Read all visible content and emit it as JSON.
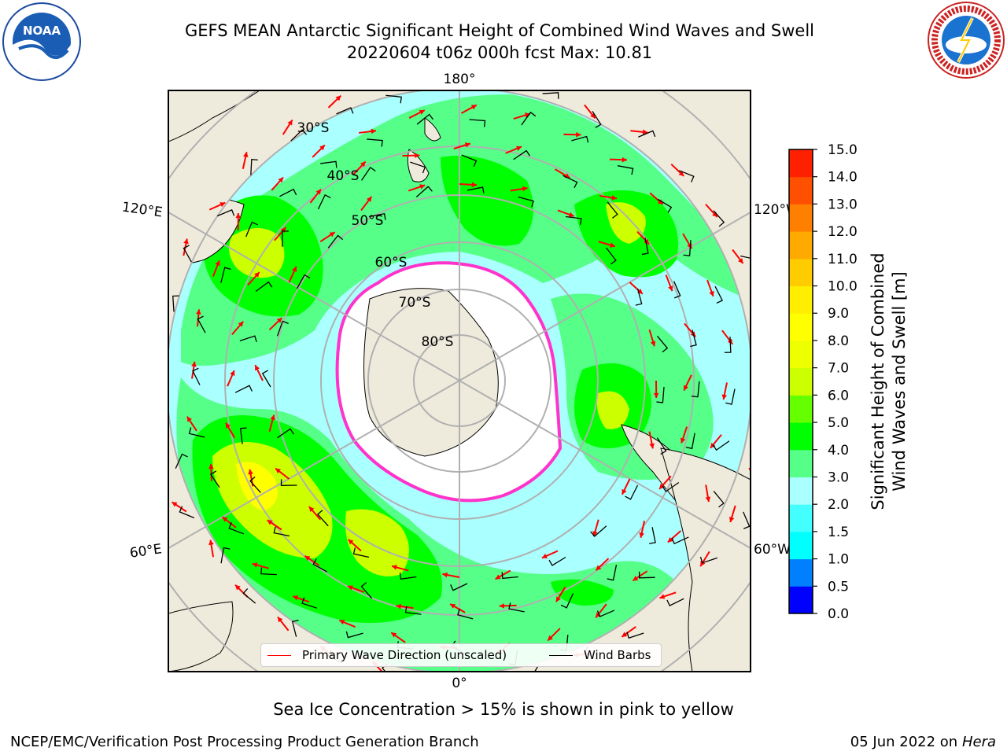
{
  "title": {
    "line1": "GEFS MEAN Antarctic Significant Height of Combined Wind Waves and Swell",
    "line2": "20220604 t06z 000h fcst   Max: 10.81"
  },
  "logos": {
    "left": {
      "icon": "noaa-logo",
      "text": "NOAA"
    },
    "right": {
      "icon": "nws-logo",
      "text": "NATIONAL WEATHER SERVICE"
    }
  },
  "map": {
    "projection": "south-polar-stereographic",
    "longitude_labels": {
      "top": "180°",
      "upper_left": "120°E",
      "upper_right": "120°W",
      "lower_left": "60°E",
      "lower_right": "60°W",
      "bottom": "0°"
    },
    "latitude_labels": [
      "30°S",
      "40°S",
      "50°S",
      "60°S",
      "70°S",
      "80°S"
    ],
    "colors": {
      "land": "#efebdc",
      "ocean_low": "#aaffff",
      "antarctica": "#ffffff",
      "sea_ice_edge": "#ff33cc",
      "wave_arrow": "#ff0000",
      "wind_barb": "#000000"
    }
  },
  "legend": {
    "primary_wave": "Primary Wave Direction (unscaled)",
    "wind_barbs": "Wind Barbs"
  },
  "colorbar": {
    "label_line1": "Significant Height of Combined",
    "label_line2": "Wind Waves and Swell [m]",
    "ticks": [
      "0.0",
      "0.5",
      "1.0",
      "1.5",
      "2.0",
      "3.0",
      "4.0",
      "5.0",
      "6.0",
      "7.0",
      "8.0",
      "9.0",
      "10.0",
      "11.0",
      "12.0",
      "13.0",
      "14.0",
      "15.0"
    ],
    "colors": [
      "#0000ff",
      "#0080ff",
      "#00ffff",
      "#44ffff",
      "#aaffff",
      "#55ff88",
      "#00ff00",
      "#66ff00",
      "#ccff00",
      "#eeff00",
      "#ffff00",
      "#ffee00",
      "#ffcc00",
      "#ffaa00",
      "#ff8000",
      "#ff5000",
      "#ff2000"
    ]
  },
  "subcaption": "Sea Ice Concentration > 15% is shown in pink to yellow",
  "footer": {
    "left": "NCEP/EMC/Verification Post Processing Product Generation Branch",
    "right_date": "05 Jun 2022 on",
    "right_host": "Hera"
  }
}
